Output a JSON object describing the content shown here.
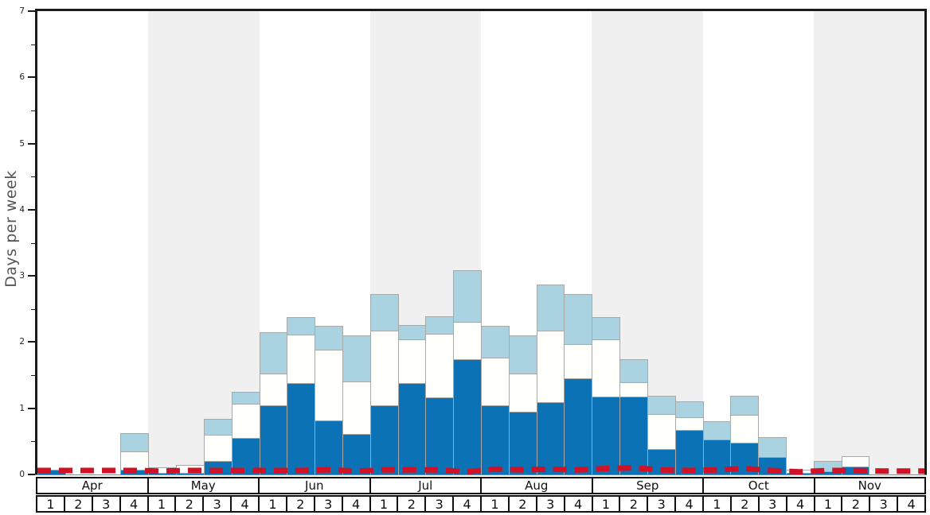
{
  "chart_data": {
    "type": "bar",
    "title": "",
    "ylabel": "Days per week",
    "xlabel": "",
    "ylim": [
      0,
      7
    ],
    "yticks": [
      0,
      1,
      2,
      3,
      4,
      5,
      6,
      7
    ],
    "minor_tick_step": 0.5,
    "grid": false,
    "legend": "none",
    "months": [
      "Apr",
      "May",
      "Jun",
      "Jul",
      "Aug",
      "Sep",
      "Oct",
      "Nov"
    ],
    "week_numbers": [
      "1",
      "2",
      "3",
      "4"
    ],
    "shaded_months": [
      "May",
      "Jul",
      "Sep",
      "Nov"
    ],
    "stacked": true,
    "series": [
      {
        "name": "dark-blue-days",
        "color": "#0b72b6",
        "values": [
          0.07,
          0,
          0,
          0.07,
          0.02,
          0.02,
          0.2,
          0.55,
          1.04,
          1.38,
          0.82,
          0.61,
          1.04,
          1.38,
          1.16,
          1.74,
          1.04,
          0.95,
          1.09,
          1.45,
          1.18,
          1.18,
          0.39,
          0.67,
          0.53,
          0.48,
          0.26,
          0.02,
          0.05,
          0.12,
          0,
          0
        ]
      },
      {
        "name": "white-days",
        "color": "#fffffc",
        "values": [
          0,
          0,
          0,
          0.28,
          0.09,
          0.12,
          0.4,
          0.52,
          0.49,
          0.73,
          1.07,
          0.79,
          1.13,
          0.66,
          0.96,
          0.56,
          0.73,
          0.58,
          1.08,
          0.52,
          0.86,
          0.21,
          0.52,
          0.2,
          0,
          0.42,
          0,
          0.05,
          0,
          0.16,
          0,
          0
        ]
      },
      {
        "name": "light-blue-days",
        "color": "#aad3e1",
        "values": [
          0,
          0,
          0,
          0.28,
          0,
          0,
          0.24,
          0.18,
          0.62,
          0.27,
          0.35,
          0.7,
          0.55,
          0.22,
          0.27,
          0.78,
          0.47,
          0.57,
          0.7,
          0.76,
          0.34,
          0.35,
          0.28,
          0.23,
          0.28,
          0.29,
          0.3,
          0,
          0.15,
          0,
          0,
          0
        ]
      }
    ],
    "red_dashed_line": {
      "name": "average-line",
      "color": "#d11125",
      "style": "dashed",
      "values": [
        0.06,
        0.06,
        0.06,
        0.06,
        0.05,
        0.06,
        0.06,
        0.06,
        0.06,
        0.06,
        0.07,
        0.05,
        0.07,
        0.07,
        0.07,
        0.04,
        0.08,
        0.07,
        0.08,
        0.07,
        0.09,
        0.1,
        0.07,
        0.06,
        0.07,
        0.09,
        0.06,
        0.04,
        0.06,
        0.06,
        0.05,
        0.05
      ]
    },
    "colors": {
      "band": "#f0f0f0",
      "bar_border": "#a8a8a8",
      "spine": "#1a1a1a",
      "baseline": "#888888",
      "tick_label": "#222222",
      "axis_label": "#555555"
    }
  }
}
